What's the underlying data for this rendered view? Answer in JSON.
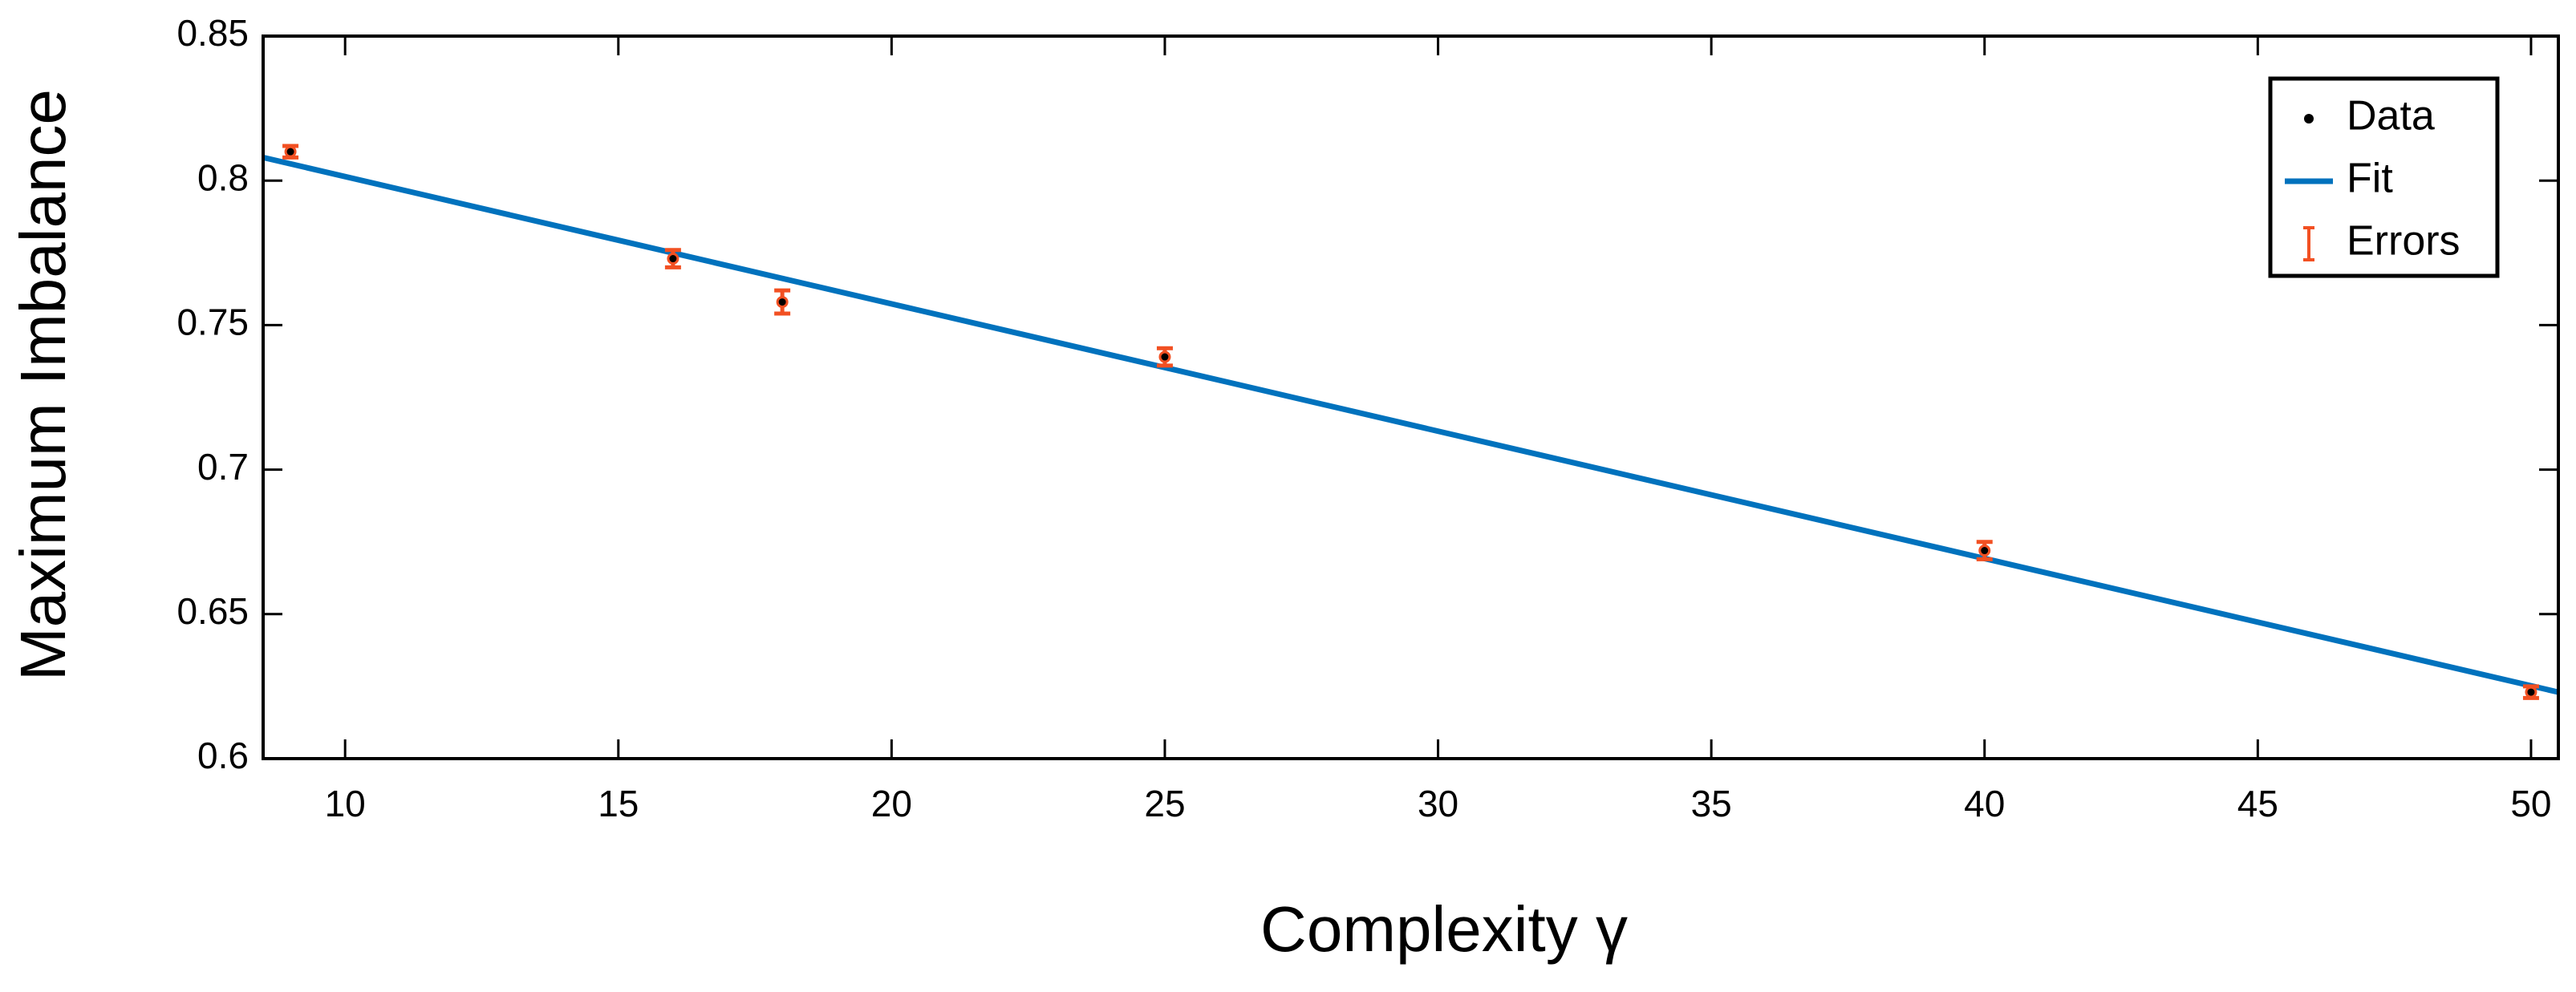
{
  "chart_data": {
    "type": "scatter",
    "x_label": "Complexity γ",
    "y_label": "Maximum Imbalance",
    "xlim": [
      8.5,
      50.5
    ],
    "ylim": [
      0.6,
      0.85
    ],
    "xticks": [
      10,
      15,
      20,
      25,
      30,
      35,
      40,
      45,
      50
    ],
    "yticks": [
      0.6,
      0.65,
      0.7,
      0.75,
      0.8,
      0.85
    ],
    "grid": false,
    "legend": "top-right",
    "series": [
      {
        "name": "Data",
        "color": "#000000",
        "x": [
          9,
          16,
          18,
          25,
          40,
          50
        ],
        "values": [
          0.81,
          0.773,
          0.758,
          0.739,
          0.672,
          0.623
        ]
      },
      {
        "name": "Fit",
        "color": "#0072bd",
        "x": [
          8.5,
          50.5
        ],
        "values": [
          0.808,
          0.623
        ]
      },
      {
        "name": "Errors",
        "color": "#f25022",
        "errors": [
          0.002,
          0.003,
          0.004,
          0.003,
          0.003,
          0.002
        ]
      }
    ]
  }
}
